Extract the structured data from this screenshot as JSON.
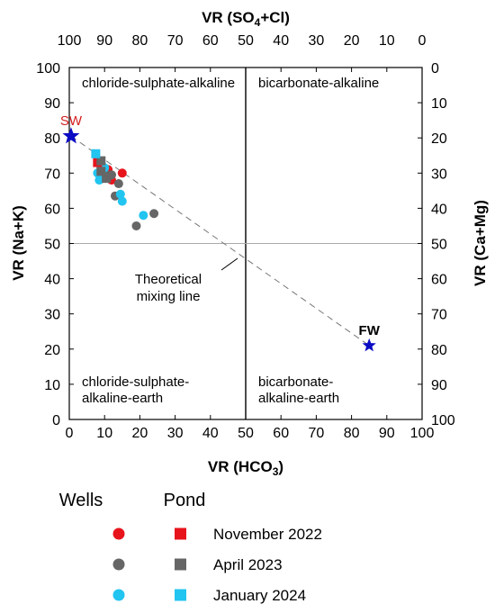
{
  "chart_data": {
    "type": "scatter",
    "title": "",
    "xlabel": "VR (HCO3)",
    "ylabel": "VR (Na+K)",
    "top_xlabel": "VR (SO4+Cl)",
    "right_ylabel": "VR (Ca+Mg)",
    "xlim": [
      0,
      100
    ],
    "ylim": [
      0,
      100
    ],
    "x_ticks": [
      "0",
      "10",
      "20",
      "30",
      "40",
      "50",
      "60",
      "70",
      "80",
      "90",
      "100"
    ],
    "y_ticks": [
      "0",
      "10",
      "20",
      "30",
      "40",
      "50",
      "60",
      "70",
      "80",
      "90",
      "100"
    ],
    "top_ticks": [
      "100",
      "90",
      "80",
      "70",
      "60",
      "50",
      "40",
      "30",
      "20",
      "10",
      "0"
    ],
    "right_ticks": [
      "100",
      "90",
      "80",
      "70",
      "60",
      "50",
      "40",
      "30",
      "20",
      "10",
      "0"
    ],
    "quadrants": {
      "top_left": "chloride-sulphate-alkaline",
      "top_right": "bicarbonate-alkaline",
      "bottom_left_1": "chloride-sulphate-",
      "bottom_left_2": "alkaline-earth",
      "bottom_right_1": "bicarbonate-",
      "bottom_right_2": "alkaline-earth"
    },
    "mixing_label_1": "Theoretical",
    "mixing_label_2": "mixing line",
    "endmembers": [
      {
        "label": "SW",
        "x": 0.5,
        "y": 80.5,
        "color": "#0b0bc4",
        "label_color": "#d42020"
      },
      {
        "label": "FW",
        "x": 85,
        "y": 21,
        "color": "#0b0bc4",
        "label_color": "#000000"
      }
    ],
    "series": [
      {
        "name": "Wells November 2022",
        "marker": "circle",
        "color": "#e8141c",
        "points": [
          [
            9,
            72
          ],
          [
            11,
            71
          ],
          [
            15,
            70
          ],
          [
            12,
            68
          ]
        ]
      },
      {
        "name": "Wells April 2023",
        "marker": "circle",
        "color": "#666666",
        "points": [
          [
            9,
            71.5
          ],
          [
            10,
            70
          ],
          [
            11,
            69
          ],
          [
            12,
            69.5
          ],
          [
            14,
            67
          ],
          [
            13,
            63.5
          ],
          [
            19,
            55
          ],
          [
            24,
            58.5
          ]
        ]
      },
      {
        "name": "Wells January 2024",
        "marker": "circle",
        "color": "#22c4f0",
        "points": [
          [
            8,
            70
          ],
          [
            9,
            73
          ],
          [
            9.5,
            68.5
          ],
          [
            8.5,
            68
          ],
          [
            14.5,
            64
          ],
          [
            15,
            62
          ],
          [
            21,
            58
          ],
          [
            10,
            71.5
          ]
        ]
      },
      {
        "name": "Pond November 2022",
        "marker": "square",
        "color": "#e8141c",
        "points": [
          [
            8,
            73
          ]
        ]
      },
      {
        "name": "Pond April 2023",
        "marker": "square",
        "color": "#666666",
        "points": [
          [
            9,
            70.5
          ],
          [
            10.5,
            68.5
          ],
          [
            9,
            73.5
          ]
        ]
      },
      {
        "name": "Pond January 2024",
        "marker": "square",
        "color": "#22c4f0",
        "points": [
          [
            7.5,
            75.5
          ]
        ]
      }
    ],
    "grid": false
  },
  "legend": {
    "wells_header": "Wells",
    "pond_header": "Pond",
    "rows": [
      {
        "label": "November 2022",
        "color": "#e8141c"
      },
      {
        "label": "April 2023",
        "color": "#666666"
      },
      {
        "label": "January 2024",
        "color": "#22c4f0"
      }
    ]
  }
}
